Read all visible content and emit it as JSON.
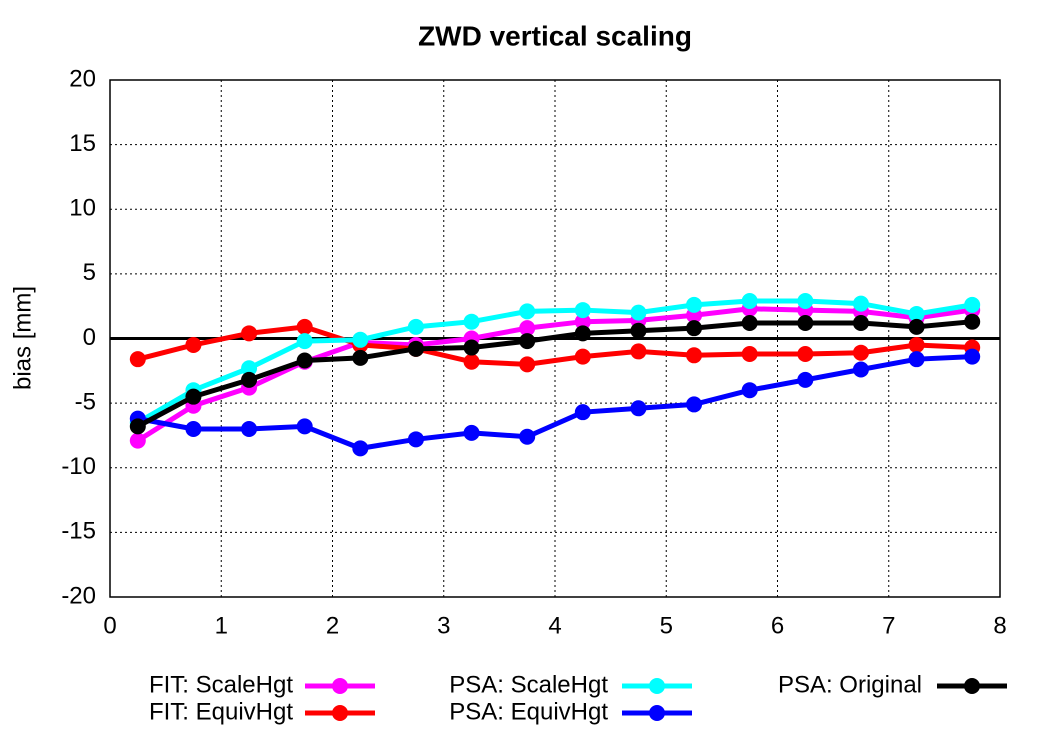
{
  "chart_data": {
    "type": "line",
    "title": "ZWD vertical scaling",
    "ylabel": "bias [mm]",
    "x": [
      0.25,
      0.75,
      1.25,
      1.75,
      2.25,
      2.75,
      3.25,
      3.75,
      4.25,
      4.75,
      5.25,
      5.75,
      6.25,
      6.75,
      7.25,
      7.75
    ],
    "series": [
      {
        "name": "FIT: ScaleHgt",
        "color": "#ff00ff",
        "values": [
          -7.9,
          -5.2,
          -3.8,
          -1.8,
          -0.3,
          -0.5,
          0,
          0.8,
          1.3,
          1.4,
          1.8,
          2.3,
          2.2,
          2.1,
          1.6,
          2.2
        ]
      },
      {
        "name": "FIT: EquivHgt",
        "color": "#ff0000",
        "values": [
          -1.6,
          -0.5,
          0.4,
          0.9,
          -0.5,
          -0.8,
          -1.8,
          -2.0,
          -1.4,
          -1.0,
          -1.3,
          -1.2,
          -1.2,
          -1.1,
          -0.5,
          -0.7
        ]
      },
      {
        "name": "PSA: ScaleHgt",
        "color": "#00ffff",
        "values": [
          -6.5,
          -4.0,
          -2.3,
          -0.2,
          -0.1,
          0.9,
          1.3,
          2.1,
          2.2,
          2.0,
          2.6,
          2.9,
          2.9,
          2.7,
          1.9,
          2.6
        ]
      },
      {
        "name": "PSA: EquivHgt",
        "color": "#0000ff",
        "values": [
          -6.2,
          -7.0,
          -7.0,
          -6.8,
          -8.5,
          -7.8,
          -7.3,
          -7.6,
          -5.7,
          -5.4,
          -5.1,
          -4.0,
          -3.2,
          -2.4,
          -1.6,
          -1.4
        ]
      },
      {
        "name": "PSA: Original",
        "color": "#000000",
        "values": [
          -6.8,
          -4.5,
          -3.2,
          -1.7,
          -1.5,
          -0.8,
          -0.7,
          -0.2,
          0.4,
          0.6,
          0.8,
          1.2,
          1.2,
          1.2,
          0.9,
          1.3
        ]
      }
    ],
    "xlim": [
      0,
      8
    ],
    "xticks": [
      0,
      1,
      2,
      3,
      4,
      5,
      6,
      7,
      8
    ],
    "ylim": [
      -20,
      20
    ],
    "yticks": [
      -20,
      -15,
      -10,
      -5,
      0,
      5,
      10,
      15,
      20
    ],
    "grid": true,
    "legend": "bottom"
  }
}
